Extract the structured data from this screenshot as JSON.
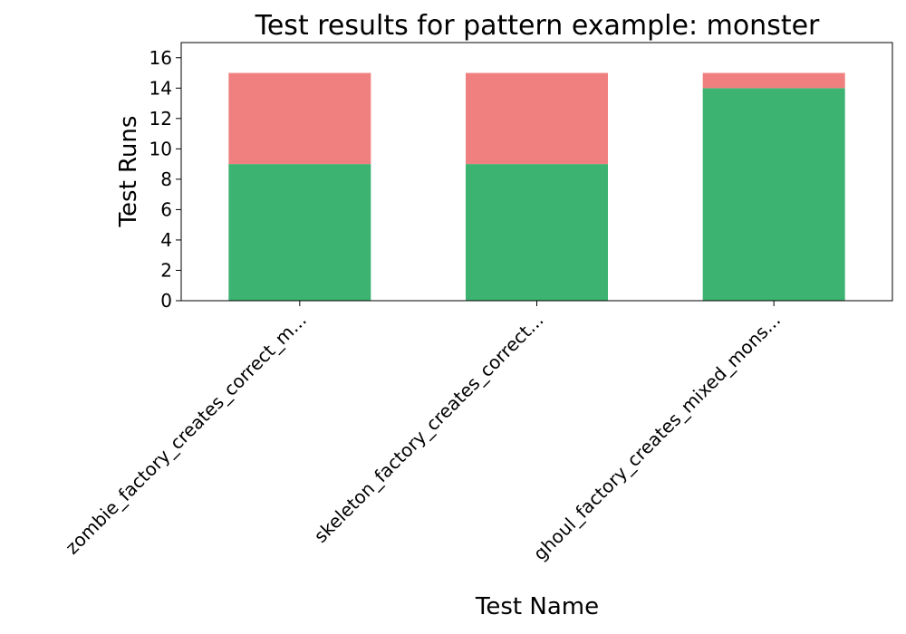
{
  "chart_data": {
    "type": "bar",
    "stacked": true,
    "title": "Test results for pattern example: monster",
    "xlabel": "Test Name",
    "ylabel": "Test Runs",
    "categories": [
      "zombie_factory_creates_correct_m...",
      "skeleton_factory_creates_correct...",
      "ghoul_factory_creates_mixed_mons..."
    ],
    "series": [
      {
        "color": "#3cb371",
        "values": [
          9,
          9,
          14
        ]
      },
      {
        "color": "#f08080",
        "values": [
          6,
          6,
          1
        ]
      }
    ],
    "ylim": [
      0,
      17
    ],
    "yticks": [
      0,
      2,
      4,
      6,
      8,
      10,
      12,
      14,
      16
    ],
    "grid": false,
    "legend": "none"
  }
}
